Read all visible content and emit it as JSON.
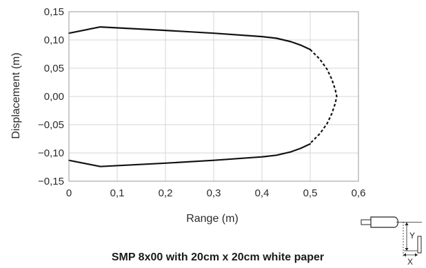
{
  "chart_data": {
    "type": "line",
    "title": "",
    "caption": "SMP 8x00 with 20cm x 20cm white paper",
    "xlabel": "Range (m)",
    "ylabel": "Displacement (m)",
    "xlim": [
      0,
      0.6
    ],
    "ylim": [
      -0.15,
      0.15
    ],
    "grid": true,
    "x_ticks": [
      0,
      0.1,
      0.2,
      0.3,
      0.4,
      0.5,
      0.6
    ],
    "x_tick_labels": [
      "0",
      "0,1",
      "0,2",
      "0,3",
      "0,4",
      "0,5",
      "0,6"
    ],
    "y_ticks": [
      0.15,
      0.1,
      0.05,
      0.0,
      -0.05,
      -0.1,
      -0.15
    ],
    "y_tick_labels": [
      "0,15",
      "0,10",
      "0,05",
      "0,00",
      "−0,05",
      "−0,10",
      "−0,15"
    ],
    "series": [
      {
        "style": "solid",
        "x": [
          0,
          0.065,
          0.2,
          0.3,
          0.4,
          0.43,
          0.46,
          0.48,
          0.5
        ],
        "y": [
          0.112,
          0.123,
          0.117,
          0.112,
          0.106,
          0.103,
          0.097,
          0.091,
          0.083
        ]
      },
      {
        "style": "dashed",
        "x": [
          0.5,
          0.52,
          0.535,
          0.545,
          0.552,
          0.555,
          0.552,
          0.545,
          0.535,
          0.52,
          0.5
        ],
        "y": [
          0.083,
          0.066,
          0.048,
          0.03,
          0.012,
          0.0,
          -0.012,
          -0.03,
          -0.048,
          -0.066,
          -0.083
        ]
      },
      {
        "style": "solid",
        "x": [
          0,
          0.065,
          0.2,
          0.3,
          0.4,
          0.43,
          0.46,
          0.48,
          0.5
        ],
        "y": [
          -0.113,
          -0.124,
          -0.118,
          -0.113,
          -0.107,
          -0.104,
          -0.098,
          -0.092,
          -0.084
        ]
      }
    ],
    "inset": {
      "y_label": "Y",
      "x_label": "X"
    }
  }
}
